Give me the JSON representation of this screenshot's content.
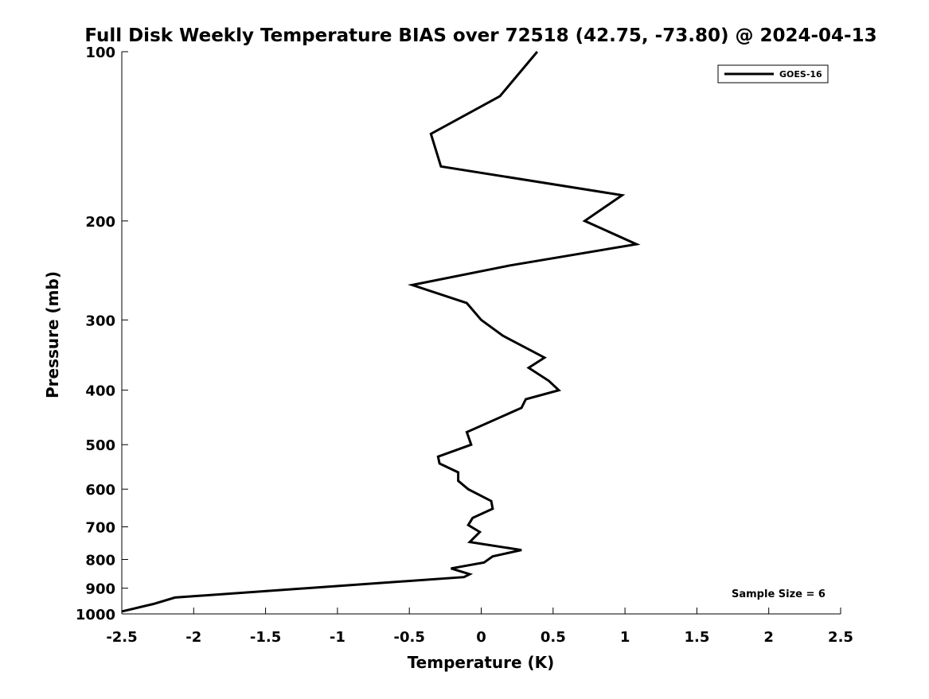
{
  "chart_data": {
    "type": "line",
    "title": "Full Disk Weekly Temperature BIAS over 72518 (42.75, -73.80) @ 2024-04-13",
    "xlabel": "Temperature (K)",
    "ylabel": "Pressure (mb)",
    "xlim": [
      -2.5,
      2.5
    ],
    "ylim": [
      100,
      1000
    ],
    "y_scale": "log",
    "y_reversed": true,
    "grid": false,
    "x_ticks": [
      -2.5,
      -2,
      -1.5,
      -1,
      -0.5,
      0,
      0.5,
      1,
      1.5,
      2,
      2.5
    ],
    "x_tick_labels": [
      "-2.5",
      "-2",
      "-1.5",
      "-1",
      "-0.5",
      "0",
      "0.5",
      "1",
      "1.5",
      "2",
      "2.5"
    ],
    "y_ticks": [
      100,
      200,
      300,
      400,
      500,
      600,
      700,
      800,
      900,
      1000
    ],
    "y_tick_labels": [
      "100",
      "200",
      "300",
      "400",
      "500",
      "600",
      "700",
      "800",
      "900",
      "1000"
    ],
    "legend": {
      "placement": "top-right",
      "entries": [
        "GOES-16"
      ]
    },
    "annotation": "Sample Size = 6",
    "series": [
      {
        "name": "GOES-16",
        "color": "#000000",
        "points": [
          {
            "x": 0.39,
            "y": 100
          },
          {
            "x": 0.13,
            "y": 120
          },
          {
            "x": -0.35,
            "y": 140
          },
          {
            "x": -0.28,
            "y": 160
          },
          {
            "x": 0.98,
            "y": 180
          },
          {
            "x": 0.72,
            "y": 200
          },
          {
            "x": 1.08,
            "y": 220
          },
          {
            "x": 0.2,
            "y": 240
          },
          {
            "x": -0.48,
            "y": 260
          },
          {
            "x": -0.1,
            "y": 280
          },
          {
            "x": 0.0,
            "y": 300
          },
          {
            "x": 0.15,
            "y": 320
          },
          {
            "x": 0.44,
            "y": 350
          },
          {
            "x": 0.33,
            "y": 365
          },
          {
            "x": 0.47,
            "y": 385
          },
          {
            "x": 0.54,
            "y": 400
          },
          {
            "x": 0.31,
            "y": 415
          },
          {
            "x": 0.28,
            "y": 430
          },
          {
            "x": -0.1,
            "y": 475
          },
          {
            "x": -0.07,
            "y": 500
          },
          {
            "x": -0.3,
            "y": 525
          },
          {
            "x": -0.29,
            "y": 540
          },
          {
            "x": -0.16,
            "y": 560
          },
          {
            "x": -0.16,
            "y": 580
          },
          {
            "x": -0.09,
            "y": 600
          },
          {
            "x": 0.07,
            "y": 630
          },
          {
            "x": 0.08,
            "y": 650
          },
          {
            "x": -0.06,
            "y": 675
          },
          {
            "x": -0.09,
            "y": 695
          },
          {
            "x": -0.01,
            "y": 715
          },
          {
            "x": -0.08,
            "y": 745
          },
          {
            "x": 0.28,
            "y": 770
          },
          {
            "x": 0.08,
            "y": 790
          },
          {
            "x": 0.02,
            "y": 810
          },
          {
            "x": -0.21,
            "y": 830
          },
          {
            "x": -0.08,
            "y": 850
          },
          {
            "x": -0.12,
            "y": 860
          },
          {
            "x": -2.13,
            "y": 935
          },
          {
            "x": -2.28,
            "y": 960
          },
          {
            "x": -2.5,
            "y": 990
          }
        ]
      }
    ]
  }
}
